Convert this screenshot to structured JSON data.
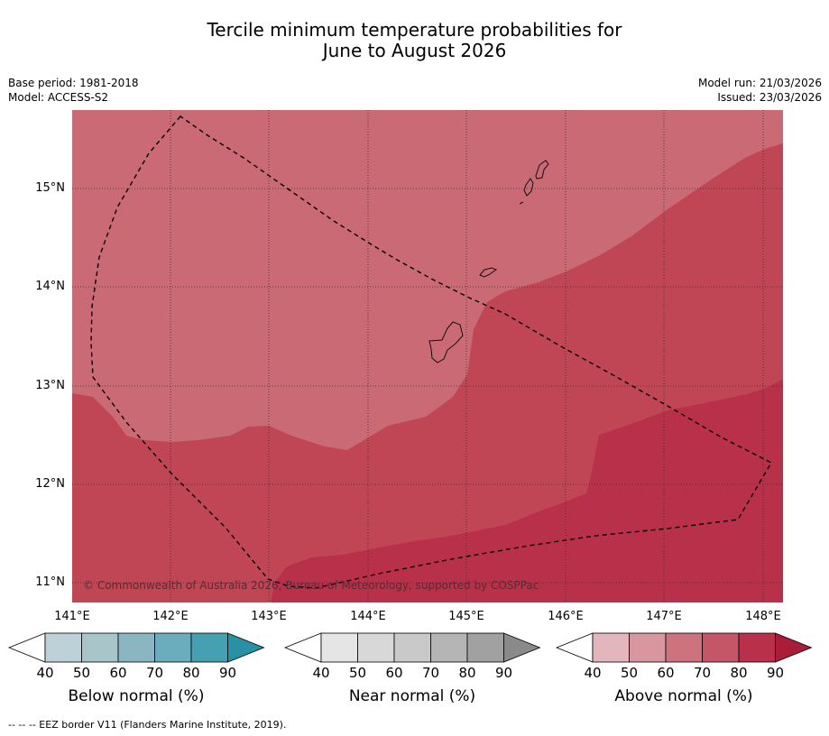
{
  "title_line1": "Tercile minimum temperature probabilities for",
  "title_line2": "June to August 2026",
  "meta_left": {
    "base_period": "Base period: 1981-2018",
    "model": "Model: ACCESS-S2"
  },
  "meta_right": {
    "model_run": "Model run: 21/03/2026",
    "issued": "Issued: 23/03/2026"
  },
  "latitude_labels": [
    "15°N",
    "14°N",
    "13°N",
    "12°N",
    "11°N"
  ],
  "longitude_labels": [
    "141°E",
    "142°E",
    "143°E",
    "144°E",
    "145°E",
    "146°E",
    "147°E",
    "148°E"
  ],
  "copyright": "© Commonwealth of Australia 2026, Bureau of Meteorology, supported by COSPPac",
  "colors": {
    "above_60": "#ca6a74",
    "above_70": "#c04656",
    "above_80": "#b9304a"
  },
  "colorbars": [
    {
      "name": "below",
      "label": "Below normal (%)",
      "ticks": [
        "40",
        "50",
        "60",
        "70",
        "80",
        "90"
      ],
      "colors": [
        "#ffffff",
        "#bdd2d8",
        "#a8c5ca",
        "#89b6c1",
        "#6badbc",
        "#45a0b2",
        "#2a90a6"
      ]
    },
    {
      "name": "near",
      "label": "Near normal (%)",
      "ticks": [
        "40",
        "50",
        "60",
        "70",
        "80",
        "90"
      ],
      "colors": [
        "#ffffff",
        "#e5e5e5",
        "#d8d8d8",
        "#c9c9c9",
        "#b5b5b5",
        "#a1a1a1",
        "#8a8a8a"
      ]
    },
    {
      "name": "above",
      "label": "Above normal (%)",
      "ticks": [
        "40",
        "50",
        "60",
        "70",
        "80",
        "90"
      ],
      "colors": [
        "#ffffff",
        "#e2b6bc",
        "#d8969e",
        "#cd737d",
        "#c45667",
        "#b9304a",
        "#a91c3a"
      ]
    }
  ],
  "footer": "--  --  -- EEZ border V11 (Flanders Marine Institute, 2019)."
}
